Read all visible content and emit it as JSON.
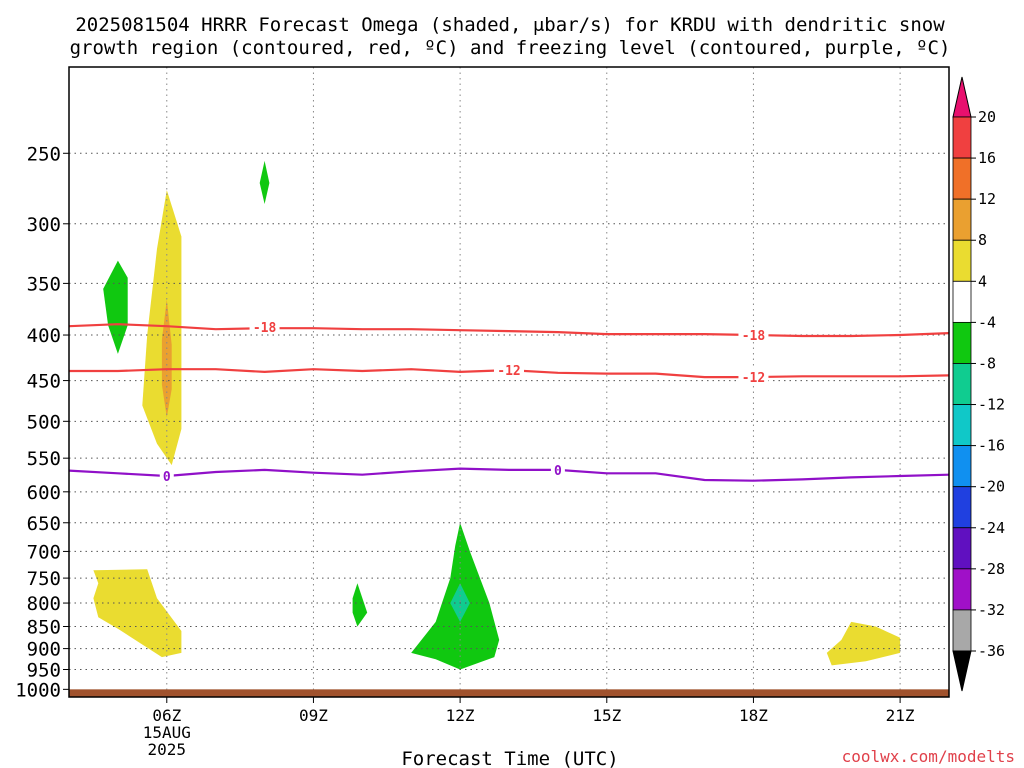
{
  "chart_data": {
    "type": "heatmap",
    "title_line1": "2025081504 HRRR Forecast Omega (shaded, μbar/s) for KRDU with dendritic snow",
    "title_line2": "growth region (contoured, red, ºC) and freezing level (contoured, purple, ºC)",
    "xlabel": "Forecast Time (UTC)",
    "credit": "coolwx.com/modelts",
    "x_ticks": [
      {
        "hour": 6,
        "label": "06Z",
        "sub1": "15AUG",
        "sub2": "2025"
      },
      {
        "hour": 9,
        "label": "09Z"
      },
      {
        "hour": 12,
        "label": "12Z"
      },
      {
        "hour": 15,
        "label": "15Z"
      },
      {
        "hour": 18,
        "label": "18Z"
      },
      {
        "hour": 21,
        "label": "21Z"
      }
    ],
    "xlim": [
      4,
      22
    ],
    "y_ticks": [
      250,
      300,
      350,
      400,
      450,
      500,
      550,
      600,
      650,
      700,
      750,
      800,
      850,
      900,
      950,
      1000
    ],
    "ylim_pressure_hPa": [
      200,
      1020
    ],
    "y_scale": "log-pressure",
    "ground_color": "#a0522d",
    "colorbar": {
      "labels": [
        "20",
        "16",
        "12",
        "8",
        "4",
        "-4",
        "-8",
        "-12",
        "-16",
        "-20",
        "-24",
        "-28",
        "-32",
        "-36"
      ],
      "colors": [
        "#e8106e",
        "#f04040",
        "#f07028",
        "#eaa030",
        "#eadc30",
        "#ffffff",
        "#10c810",
        "#10cc90",
        "#10c8c8",
        "#1090f0",
        "#2040e0",
        "#6010c0",
        "#a010c8",
        "#a8a8a8",
        "#000000"
      ]
    },
    "contours": [
      {
        "label": "-18",
        "color": "#f04040",
        "points": [
          [
            4,
            391
          ],
          [
            5,
            389
          ],
          [
            6,
            391
          ],
          [
            7,
            394
          ],
          [
            8,
            393
          ],
          [
            9,
            393
          ],
          [
            10,
            394
          ],
          [
            11,
            394
          ],
          [
            12,
            395
          ],
          [
            13,
            396
          ],
          [
            14,
            397
          ],
          [
            15,
            399
          ],
          [
            16,
            399
          ],
          [
            17,
            399
          ],
          [
            18,
            400
          ],
          [
            19,
            401
          ],
          [
            20,
            401
          ],
          [
            21,
            400
          ],
          [
            22,
            398
          ]
        ],
        "label_at": [
          [
            8,
            392
          ],
          [
            18,
            400
          ]
        ]
      },
      {
        "label": "-12",
        "color": "#f04040",
        "points": [
          [
            4,
            439
          ],
          [
            5,
            439
          ],
          [
            6,
            437
          ],
          [
            7,
            437
          ],
          [
            8,
            440
          ],
          [
            9,
            437
          ],
          [
            10,
            439
          ],
          [
            11,
            437
          ],
          [
            12,
            440
          ],
          [
            13,
            438
          ],
          [
            14,
            441
          ],
          [
            15,
            442
          ],
          [
            16,
            442
          ],
          [
            17,
            446
          ],
          [
            18,
            446
          ],
          [
            19,
            445
          ],
          [
            20,
            445
          ],
          [
            21,
            445
          ],
          [
            22,
            444
          ]
        ],
        "label_at": [
          [
            13,
            438
          ],
          [
            18,
            446
          ]
        ]
      },
      {
        "label": "0",
        "color": "#9010c8",
        "points": [
          [
            4,
            568
          ],
          [
            5,
            572
          ],
          [
            6,
            576
          ],
          [
            7,
            570
          ],
          [
            8,
            567
          ],
          [
            9,
            571
          ],
          [
            10,
            574
          ],
          [
            11,
            569
          ],
          [
            12,
            565
          ],
          [
            13,
            567
          ],
          [
            14,
            567
          ],
          [
            15,
            572
          ],
          [
            16,
            572
          ],
          [
            17,
            582
          ],
          [
            18,
            583
          ],
          [
            19,
            581
          ],
          [
            20,
            578
          ],
          [
            21,
            576
          ],
          [
            22,
            574
          ]
        ],
        "label_at": [
          [
            6,
            576
          ],
          [
            14,
            567
          ]
        ]
      }
    ],
    "shaded_regions": [
      {
        "value": 6,
        "color": "#eadc30",
        "points": [
          [
            6.0,
            275
          ],
          [
            6.3,
            310
          ],
          [
            6.3,
            365
          ],
          [
            6.3,
            430
          ],
          [
            6.3,
            510
          ],
          [
            6.1,
            560
          ],
          [
            5.8,
            530
          ],
          [
            5.5,
            480
          ],
          [
            5.6,
            400
          ],
          [
            5.8,
            320
          ]
        ]
      },
      {
        "value": 10,
        "color": "#eaa030",
        "points": [
          [
            6.0,
            365
          ],
          [
            6.1,
            410
          ],
          [
            6.1,
            460
          ],
          [
            6.0,
            495
          ],
          [
            5.9,
            455
          ],
          [
            5.9,
            405
          ]
        ]
      },
      {
        "value": 6,
        "color": "#eadc30",
        "points": [
          [
            4.5,
            735
          ],
          [
            5.6,
            733
          ],
          [
            5.8,
            790
          ],
          [
            6.3,
            860
          ],
          [
            6.3,
            910
          ],
          [
            5.9,
            920
          ],
          [
            5.0,
            855
          ],
          [
            4.6,
            830
          ],
          [
            4.5,
            790
          ],
          [
            4.6,
            760
          ]
        ]
      },
      {
        "value": -6,
        "color": "#10c810",
        "points": [
          [
            5.0,
            330
          ],
          [
            5.2,
            345
          ],
          [
            5.2,
            390
          ],
          [
            5.0,
            420
          ],
          [
            4.8,
            390
          ],
          [
            4.7,
            355
          ]
        ]
      },
      {
        "value": -6,
        "color": "#10c810",
        "points": [
          [
            8.0,
            255
          ],
          [
            8.1,
            270
          ],
          [
            8.0,
            285
          ],
          [
            7.9,
            270
          ]
        ]
      },
      {
        "value": -6,
        "color": "#10c810",
        "points": [
          [
            9.9,
            760
          ],
          [
            10.1,
            820
          ],
          [
            9.9,
            850
          ],
          [
            9.8,
            820
          ],
          [
            9.8,
            790
          ]
        ]
      },
      {
        "value": -6,
        "color": "#10c810",
        "points": [
          [
            12.0,
            650
          ],
          [
            12.2,
            700
          ],
          [
            12.6,
            800
          ],
          [
            12.8,
            880
          ],
          [
            12.7,
            920
          ],
          [
            12.0,
            950
          ],
          [
            11.5,
            925
          ],
          [
            11.0,
            910
          ],
          [
            11.5,
            840
          ],
          [
            11.8,
            750
          ],
          [
            11.9,
            690
          ]
        ]
      },
      {
        "value": -10,
        "color": "#10cc90",
        "points": [
          [
            12.0,
            760
          ],
          [
            12.2,
            800
          ],
          [
            12.0,
            840
          ],
          [
            11.8,
            800
          ]
        ]
      },
      {
        "value": 6,
        "color": "#eadc30",
        "points": [
          [
            20.0,
            840
          ],
          [
            20.5,
            850
          ],
          [
            21.0,
            875
          ],
          [
            21.0,
            910
          ],
          [
            20.3,
            930
          ],
          [
            19.6,
            940
          ],
          [
            19.5,
            910
          ],
          [
            19.8,
            880
          ]
        ]
      }
    ]
  }
}
